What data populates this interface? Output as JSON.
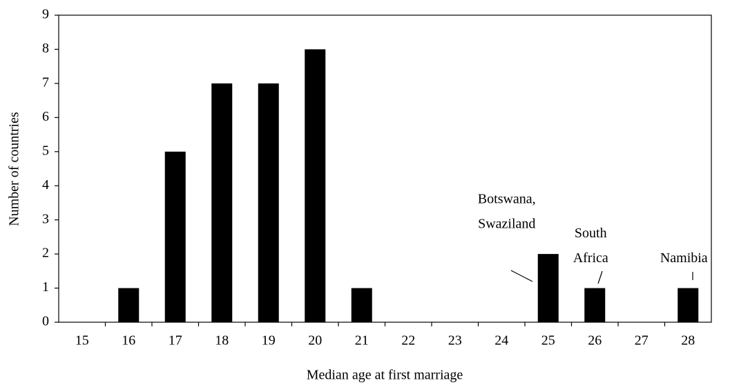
{
  "chart_data": {
    "type": "bar",
    "x_label": "Median age at first marriage",
    "y_label": "Number of countries",
    "categories": [
      "15",
      "16",
      "17",
      "18",
      "19",
      "20",
      "21",
      "22",
      "23",
      "24",
      "25",
      "26",
      "27",
      "28"
    ],
    "values": [
      0,
      1,
      5,
      7,
      7,
      8,
      1,
      0,
      0,
      0,
      2,
      1,
      0,
      1
    ],
    "color": "#000000",
    "ylim": [
      0,
      9
    ],
    "yticks": [
      0,
      1,
      2,
      3,
      4,
      5,
      6,
      7,
      8,
      9
    ],
    "grid": false,
    "annotations": [
      {
        "category": "25",
        "lines": [
          "Botswana,",
          "Swaziland"
        ]
      },
      {
        "category": "26",
        "lines": [
          "South",
          "Africa"
        ]
      },
      {
        "category": "28",
        "lines": [
          "Namibia"
        ]
      }
    ]
  }
}
